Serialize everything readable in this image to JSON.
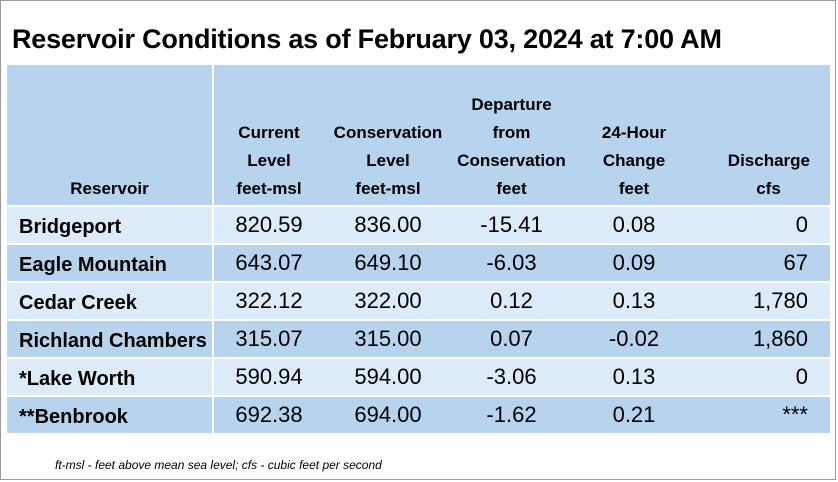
{
  "title": "Reservoir Conditions as of February 03, 2024 at 7:00 AM",
  "headers": [
    [
      "Reservoir"
    ],
    [
      "Current",
      "Level",
      "feet-msl"
    ],
    [
      "Conservation",
      "Level",
      "feet-msl"
    ],
    [
      "Departure",
      "from",
      "Conservation",
      "feet"
    ],
    [
      "24-Hour",
      "Change",
      "feet"
    ],
    [
      "Discharge",
      "cfs"
    ]
  ],
  "rows": [
    {
      "name": "Bridgeport",
      "current": "820.59",
      "conservation": "836.00",
      "departure": "-15.41",
      "change": "0.08",
      "discharge": "0"
    },
    {
      "name": "Eagle Mountain",
      "current": "643.07",
      "conservation": "649.10",
      "departure": "-6.03",
      "change": "0.09",
      "discharge": "67"
    },
    {
      "name": "Cedar Creek",
      "current": "322.12",
      "conservation": "322.00",
      "departure": "0.12",
      "change": "0.13",
      "discharge": "1,780"
    },
    {
      "name": "Richland Chambers",
      "current": "315.07",
      "conservation": "315.00",
      "departure": "0.07",
      "change": "-0.02",
      "discharge": "1,860"
    },
    {
      "name": "*Lake Worth",
      "current": "590.94",
      "conservation": "594.00",
      "departure": "-3.06",
      "change": "0.13",
      "discharge": "0"
    },
    {
      "name": "**Benbrook",
      "current": "692.38",
      "conservation": "694.00",
      "departure": "-1.62",
      "change": "0.21",
      "discharge": "***"
    }
  ],
  "footnote": "ft-msl - feet above mean sea level; cfs - cubic feet per second",
  "colors": {
    "header_bg": "#b8d3ee",
    "row_light": "#ddeaf7",
    "row_dark": "#b8d3ee"
  }
}
